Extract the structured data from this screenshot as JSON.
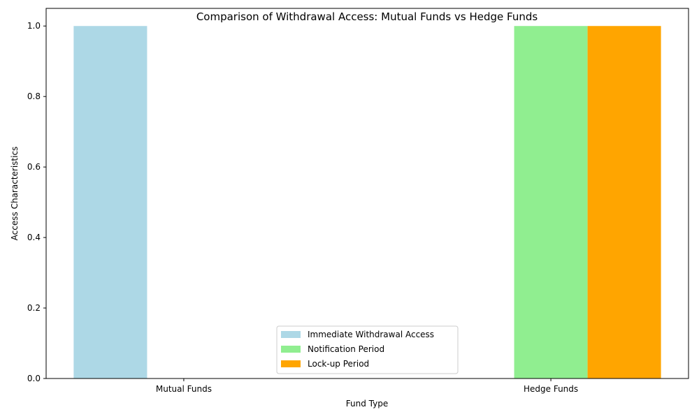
{
  "chart_data": {
    "type": "bar",
    "title": "Comparison of Withdrawal Access: Mutual Funds vs Hedge Funds",
    "xlabel": "Fund Type",
    "ylabel": "Access Characteristics",
    "categories": [
      "Mutual Funds",
      "Hedge Funds"
    ],
    "series": [
      {
        "name": "Immediate Withdrawal Access",
        "values": [
          1,
          0
        ],
        "color": "#add8e6"
      },
      {
        "name": "Notification Period",
        "values": [
          0,
          1
        ],
        "color": "#90ee90"
      },
      {
        "name": "Lock-up Period",
        "values": [
          0,
          1
        ],
        "color": "#ffa500"
      }
    ],
    "ylim": [
      0,
      1.05
    ],
    "yticks": [
      0,
      0.2,
      0.4,
      0.6,
      0.8,
      1.0
    ],
    "ytick_labels": [
      "0.0",
      "0.2",
      "0.4",
      "0.6",
      "0.8",
      "1.0"
    ],
    "grid": false,
    "legend_position": "lower-center"
  }
}
